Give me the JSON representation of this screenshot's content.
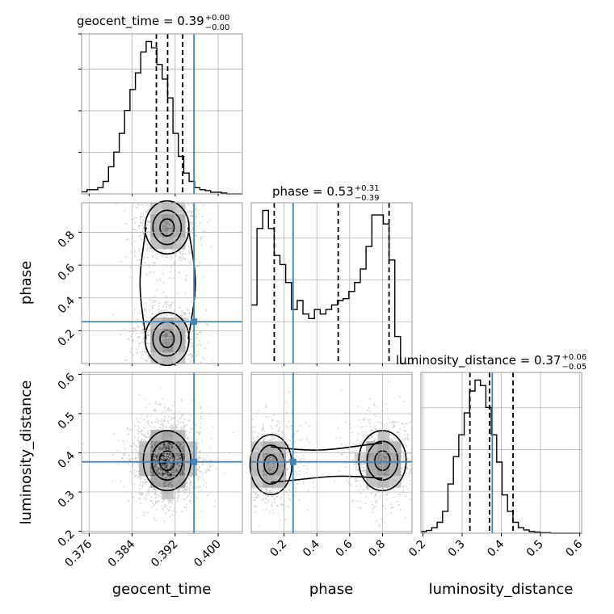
{
  "chart_data": {
    "type": "corner",
    "parameters": [
      "geocent_time",
      "phase",
      "luminosity_distance"
    ],
    "truths": {
      "geocent_time": 0.3955,
      "phase": 0.255,
      "luminosity_distance": 0.377
    },
    "titles": [
      {
        "param": "geocent_time",
        "text": "geocent_time = 0.39",
        "plus": "+0.00",
        "minus": "−0.00"
      },
      {
        "param": "phase",
        "text": "phase = 0.53",
        "plus": "+0.31",
        "minus": "−0.39"
      },
      {
        "param": "luminosity_distance",
        "text": "luminosity_distance = 0.37",
        "plus": "+0.06",
        "minus": "−0.05"
      }
    ],
    "axis_labels": {
      "x": [
        "geocent_time",
        "phase",
        "luminosity_distance"
      ],
      "y": [
        "phase",
        "luminosity_distance"
      ]
    },
    "ranges": {
      "geocent_time": [
        0.3746,
        0.4045
      ],
      "phase": [
        0.0,
        0.98
      ],
      "luminosity_distance": [
        0.195,
        0.605
      ]
    },
    "ticks": {
      "geocent_time": [
        "0.376",
        "0.384",
        "0.392",
        "0.400"
      ],
      "phase_x": [
        "0.2",
        "0.4",
        "0.6",
        "0.8"
      ],
      "phase_y": [
        "0.2",
        "0.4",
        "0.6",
        "0.8"
      ],
      "luminosity_distance_x": [
        "0.2",
        "0.3",
        "0.4",
        "0.5",
        "0.6"
      ],
      "luminosity_distance_y": [
        "0.2",
        "0.3",
        "0.4",
        "0.5",
        "0.6"
      ]
    },
    "quantiles": {
      "geocent_time": [
        0.3885,
        0.3906,
        0.3934
      ],
      "phase": [
        0.14,
        0.53,
        0.84
      ],
      "luminosity_distance": [
        0.32,
        0.37,
        0.43
      ]
    },
    "hist_geocent_time": {
      "x0": 0.3746,
      "bin_width": 0.001,
      "counts": [
        0.5,
        1,
        1,
        1.5,
        3,
        6.5,
        10,
        14.5,
        20,
        25,
        29,
        34,
        36.5,
        35,
        31,
        27.5,
        23,
        14.5,
        9,
        5,
        3,
        1.5,
        1,
        0.8,
        0.4,
        0.4,
        0.2,
        0,
        0,
        0
      ]
    },
    "hist_phase": {
      "x0": 0.0,
      "bin_width": 0.035,
      "counts": [
        6.5,
        15,
        17,
        15,
        12,
        11,
        9,
        6,
        7,
        5.5,
        5,
        6,
        5.5,
        6,
        6.5,
        7,
        7.2,
        8,
        9,
        10.5,
        13,
        16.5,
        16.5,
        15.5,
        11.5,
        3,
        0,
        0
      ]
    },
    "hist_luminosity_distance": {
      "x0": 0.195,
      "bin_width": 0.0138,
      "counts": [
        0.3,
        0.5,
        1,
        2,
        4,
        9,
        14,
        18,
        22,
        26,
        28,
        27,
        23,
        18,
        13,
        7,
        4,
        2,
        1,
        0.6,
        0.3,
        0.2,
        0.1,
        0.1,
        0,
        0,
        0,
        0,
        0,
        0
      ]
    },
    "modes_2d": {
      "geocent_time_vs_phase": [
        {
          "x": 0.3905,
          "y": 0.83
        },
        {
          "x": 0.3905,
          "y": 0.15
        }
      ],
      "geocent_time_vs_luminosity_distance": [
        {
          "x": 0.3905,
          "y": 0.38
        }
      ],
      "phase_vs_luminosity_distance": [
        {
          "x": 0.12,
          "y": 0.37
        },
        {
          "x": 0.8,
          "y": 0.38
        }
      ]
    },
    "grid": true,
    "colors": {
      "truth": "#4682b4",
      "hist": "#000000",
      "points": "#b8b8b8",
      "frame": "#9a9a9a"
    }
  }
}
